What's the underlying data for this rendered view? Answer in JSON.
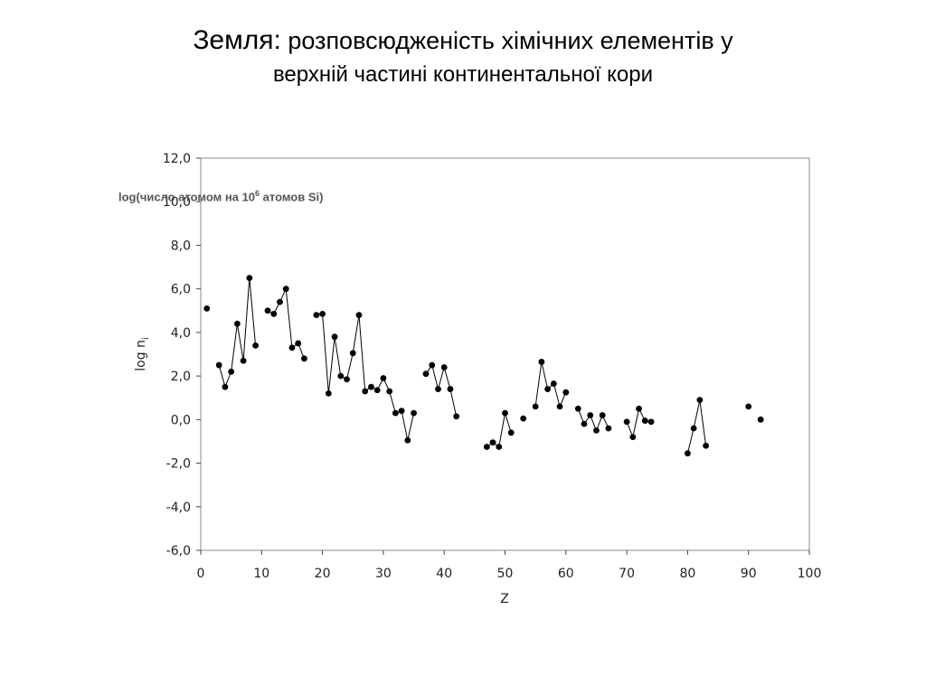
{
  "title": {
    "main": "Земля:",
    "rest_line1": " розповсюдженість хімічних елементів у",
    "line2": "верхній частині континентальної кори"
  },
  "annotation": {
    "prefix": "log(число атомом на 10",
    "sup": "6",
    "suffix": " атомов Si)"
  },
  "chart_data": {
    "type": "line",
    "xlabel": "Z",
    "ylabel": "log n",
    "ylabel_sub": "i",
    "xlim": [
      0,
      100
    ],
    "ylim": [
      -6,
      12
    ],
    "xticks": [
      "0",
      "10",
      "20",
      "30",
      "40",
      "50",
      "60",
      "70",
      "80",
      "90",
      "100"
    ],
    "yticks": [
      "12,0",
      "10,0",
      "8,0",
      "6,0",
      "4,0",
      "2,0",
      "0,0",
      "-2,0",
      "-4,0",
      "-6,0"
    ],
    "grid": false,
    "series": [
      {
        "x": [
          1,
          3,
          4,
          5,
          6,
          7,
          8,
          9,
          11,
          12,
          13,
          14,
          15,
          16,
          17,
          19,
          20,
          21,
          22,
          23,
          24,
          25,
          26,
          27,
          28,
          29,
          30,
          31,
          32,
          33,
          34,
          35,
          37,
          38,
          39,
          40,
          41,
          42,
          47,
          48,
          49,
          50,
          51,
          53,
          55,
          56,
          57,
          58,
          59,
          60,
          62,
          63,
          64,
          65,
          66,
          67,
          70,
          71,
          72,
          73,
          74,
          80,
          81,
          82,
          83,
          90,
          92
        ],
        "y": [
          5.1,
          2.5,
          1.5,
          2.2,
          4.4,
          2.7,
          6.5,
          3.4,
          5.0,
          4.85,
          5.4,
          6.0,
          3.3,
          3.5,
          2.8,
          4.8,
          4.85,
          1.2,
          3.8,
          2.0,
          1.85,
          3.05,
          4.8,
          1.3,
          1.5,
          1.35,
          1.9,
          1.3,
          0.3,
          0.4,
          -0.95,
          0.3,
          2.1,
          2.5,
          1.4,
          2.4,
          1.4,
          0.15,
          -1.25,
          -1.05,
          -1.25,
          0.3,
          -0.6,
          0.05,
          0.6,
          2.65,
          1.4,
          1.65,
          0.6,
          1.25,
          0.5,
          -0.2,
          0.2,
          -0.5,
          0.2,
          -0.4,
          -0.1,
          -0.8,
          0.5,
          -0.05,
          -0.1,
          -1.55,
          -0.4,
          0.9,
          -1.2,
          0.6,
          0.0
        ]
      }
    ]
  }
}
